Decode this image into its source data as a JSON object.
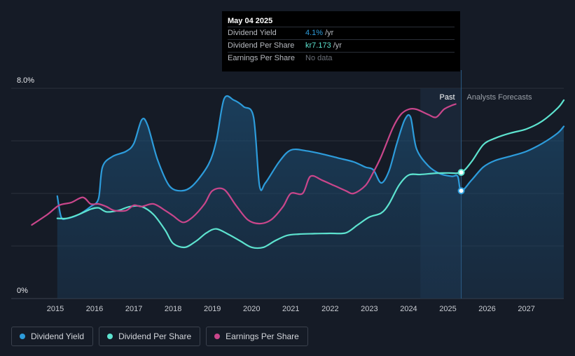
{
  "tooltip": {
    "date": "May 04 2025",
    "rows": [
      {
        "label": "Dividend Yield",
        "value": "4.1%",
        "unit": "/yr"
      },
      {
        "label": "Dividend Per Share",
        "value": "kr7.173",
        "unit": "/yr"
      },
      {
        "label": "Earnings Per Share",
        "value": "No data",
        "unit": ""
      }
    ]
  },
  "legend": [
    {
      "label": "Dividend Yield",
      "color": "#2d9cdb"
    },
    {
      "label": "Dividend Per Share",
      "color": "#5de3cf"
    },
    {
      "label": "Earnings Per Share",
      "color": "#c9468b"
    }
  ],
  "chart_data": {
    "type": "line",
    "y_axis": {
      "labels": [
        "8.0%",
        "0%"
      ],
      "ylim": [
        0,
        8.0
      ],
      "unit": "%"
    },
    "x_ticks": [
      "2015",
      "2016",
      "2017",
      "2018",
      "2019",
      "2020",
      "2021",
      "2022",
      "2023",
      "2024",
      "2025",
      "2026",
      "2027"
    ],
    "xlim": [
      2014.5,
      2028.0
    ],
    "periods": {
      "past": "Past",
      "forecast": "Analysts Forecasts",
      "divider": 2025.34,
      "highlight_start": 2024.3
    },
    "gridlines": [
      0,
      2,
      4,
      6,
      8
    ],
    "series": [
      {
        "name": "Dividend Yield",
        "color": "#2d9cdb",
        "filled": true,
        "points": [
          [
            2015.05,
            3.9
          ],
          [
            2015.15,
            3.1
          ],
          [
            2015.3,
            3.05
          ],
          [
            2015.6,
            3.2
          ],
          [
            2015.9,
            3.5
          ],
          [
            2016.1,
            3.8
          ],
          [
            2016.2,
            5.0
          ],
          [
            2016.45,
            5.4
          ],
          [
            2016.8,
            5.6
          ],
          [
            2017.0,
            5.9
          ],
          [
            2017.2,
            6.8
          ],
          [
            2017.35,
            6.6
          ],
          [
            2017.6,
            5.3
          ],
          [
            2017.9,
            4.3
          ],
          [
            2018.2,
            4.1
          ],
          [
            2018.5,
            4.3
          ],
          [
            2018.9,
            5.1
          ],
          [
            2019.1,
            6.0
          ],
          [
            2019.3,
            7.6
          ],
          [
            2019.55,
            7.55
          ],
          [
            2019.8,
            7.3
          ],
          [
            2020.05,
            6.9
          ],
          [
            2020.2,
            4.3
          ],
          [
            2020.35,
            4.4
          ],
          [
            2020.7,
            5.2
          ],
          [
            2021.0,
            5.65
          ],
          [
            2021.4,
            5.62
          ],
          [
            2021.8,
            5.5
          ],
          [
            2022.2,
            5.35
          ],
          [
            2022.6,
            5.2
          ],
          [
            2022.9,
            5.0
          ],
          [
            2023.1,
            4.9
          ],
          [
            2023.3,
            4.4
          ],
          [
            2023.5,
            4.85
          ],
          [
            2023.7,
            5.9
          ],
          [
            2023.9,
            6.8
          ],
          [
            2024.05,
            6.9
          ],
          [
            2024.2,
            5.7
          ],
          [
            2024.5,
            5.05
          ],
          [
            2024.8,
            4.75
          ],
          [
            2025.1,
            4.65
          ],
          [
            2025.25,
            4.65
          ],
          [
            2025.34,
            4.1
          ],
          [
            2025.6,
            4.5
          ],
          [
            2025.9,
            5.0
          ],
          [
            2026.2,
            5.25
          ],
          [
            2026.6,
            5.42
          ],
          [
            2027.0,
            5.6
          ],
          [
            2027.4,
            5.9
          ],
          [
            2027.8,
            6.3
          ],
          [
            2028.0,
            6.55
          ]
        ]
      },
      {
        "name": "Dividend Per Share",
        "color": "#5de3cf",
        "filled": false,
        "points": [
          [
            2015.05,
            3.05
          ],
          [
            2015.3,
            3.05
          ],
          [
            2015.6,
            3.2
          ],
          [
            2015.9,
            3.4
          ],
          [
            2016.1,
            3.45
          ],
          [
            2016.3,
            3.3
          ],
          [
            2016.6,
            3.35
          ],
          [
            2016.9,
            3.5
          ],
          [
            2017.2,
            3.5
          ],
          [
            2017.5,
            3.2
          ],
          [
            2017.8,
            2.6
          ],
          [
            2018.0,
            2.1
          ],
          [
            2018.3,
            1.95
          ],
          [
            2018.6,
            2.2
          ],
          [
            2018.85,
            2.5
          ],
          [
            2019.1,
            2.65
          ],
          [
            2019.4,
            2.45
          ],
          [
            2019.7,
            2.2
          ],
          [
            2020.0,
            1.95
          ],
          [
            2020.3,
            1.95
          ],
          [
            2020.6,
            2.2
          ],
          [
            2020.9,
            2.4
          ],
          [
            2021.2,
            2.45
          ],
          [
            2021.6,
            2.47
          ],
          [
            2022.0,
            2.48
          ],
          [
            2022.4,
            2.5
          ],
          [
            2022.7,
            2.8
          ],
          [
            2023.0,
            3.1
          ],
          [
            2023.3,
            3.25
          ],
          [
            2023.5,
            3.6
          ],
          [
            2023.75,
            4.3
          ],
          [
            2024.0,
            4.7
          ],
          [
            2024.3,
            4.72
          ],
          [
            2024.7,
            4.77
          ],
          [
            2025.0,
            4.78
          ],
          [
            2025.34,
            4.8
          ],
          [
            2025.6,
            5.2
          ],
          [
            2025.9,
            5.85
          ],
          [
            2026.2,
            6.1
          ],
          [
            2026.6,
            6.3
          ],
          [
            2027.0,
            6.45
          ],
          [
            2027.4,
            6.75
          ],
          [
            2027.8,
            7.25
          ],
          [
            2028.0,
            7.55
          ]
        ]
      },
      {
        "name": "Earnings Per Share",
        "color": "#c9468b",
        "filled": false,
        "points": [
          [
            2014.4,
            2.8
          ],
          [
            2014.8,
            3.2
          ],
          [
            2015.1,
            3.55
          ],
          [
            2015.4,
            3.65
          ],
          [
            2015.7,
            3.85
          ],
          [
            2015.9,
            3.6
          ],
          [
            2016.1,
            3.6
          ],
          [
            2016.3,
            3.5
          ],
          [
            2016.5,
            3.35
          ],
          [
            2016.8,
            3.35
          ],
          [
            2017.0,
            3.55
          ],
          [
            2017.2,
            3.5
          ],
          [
            2017.5,
            3.6
          ],
          [
            2017.8,
            3.35
          ],
          [
            2018.0,
            3.15
          ],
          [
            2018.25,
            2.9
          ],
          [
            2018.5,
            3.1
          ],
          [
            2018.8,
            3.6
          ],
          [
            2019.0,
            4.1
          ],
          [
            2019.3,
            4.15
          ],
          [
            2019.6,
            3.55
          ],
          [
            2019.9,
            3.0
          ],
          [
            2020.2,
            2.85
          ],
          [
            2020.5,
            3.0
          ],
          [
            2020.8,
            3.5
          ],
          [
            2021.0,
            4.0
          ],
          [
            2021.3,
            4.0
          ],
          [
            2021.5,
            4.65
          ],
          [
            2021.8,
            4.5
          ],
          [
            2022.1,
            4.3
          ],
          [
            2022.4,
            4.1
          ],
          [
            2022.6,
            4.0
          ],
          [
            2022.9,
            4.3
          ],
          [
            2023.1,
            4.8
          ],
          [
            2023.3,
            5.4
          ],
          [
            2023.6,
            6.5
          ],
          [
            2023.8,
            7.0
          ],
          [
            2024.0,
            7.2
          ],
          [
            2024.2,
            7.2
          ],
          [
            2024.5,
            7.0
          ],
          [
            2024.7,
            6.9
          ],
          [
            2024.9,
            7.2
          ],
          [
            2025.1,
            7.35
          ],
          [
            2025.2,
            7.4
          ]
        ]
      }
    ],
    "markers": [
      {
        "series": "Dividend Yield",
        "x": 2025.34,
        "y": 4.1
      },
      {
        "series": "Dividend Per Share",
        "x": 2025.34,
        "y": 4.8
      }
    ]
  }
}
